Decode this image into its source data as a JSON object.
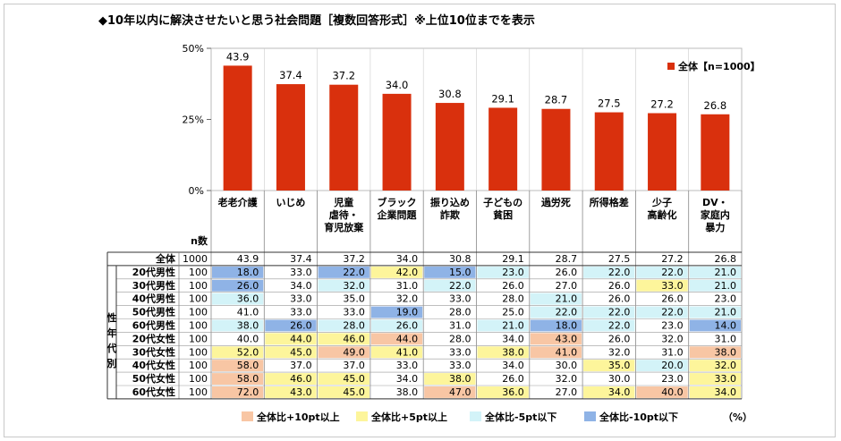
{
  "title": "◆10年以内に解決させたいと思う社会問題［複数回答形式］※上位10位までを表示",
  "unit": "（%）",
  "n_header": "n数",
  "side_label": "性年代別",
  "legend_main": "全体【n=1000】",
  "legend_items": [
    {
      "label": "全体比+10pt以上",
      "color": "#f8c6a4"
    },
    {
      "label": "全体比+5pt以上",
      "color": "#fdf59b"
    },
    {
      "label": "全体比-5pt以下",
      "color": "#d3f3f8"
    },
    {
      "label": "全体比-10pt以下",
      "color": "#8fb3e6"
    }
  ],
  "colors": {
    "bar": "#d9300d",
    "plus10": "#f8c6a4",
    "plus5": "#fdf59b",
    "minus5": "#d3f3f8",
    "minus10": "#8fb3e6"
  },
  "chart_data": {
    "type": "bar",
    "categories": [
      "老老介護",
      "いじめ",
      "児童虐待・育児放棄",
      "ブラック企業問題",
      "振り込め詐欺",
      "子どもの貧困",
      "過労死",
      "所得格差",
      "少子高齢化",
      "DV・家庭内暴力"
    ],
    "category_lines": [
      [
        "老老介護"
      ],
      [
        "いじめ"
      ],
      [
        "児童",
        "虐待・",
        "育児放棄"
      ],
      [
        "ブラック",
        "企業問題"
      ],
      [
        "振り込め",
        "詐欺"
      ],
      [
        "子どもの",
        "貧困"
      ],
      [
        "過労死"
      ],
      [
        "所得格差"
      ],
      [
        "少子",
        "高齢化"
      ],
      [
        "DV・",
        "家庭内",
        "暴力"
      ]
    ],
    "series": [
      {
        "name": "全体【n=1000】",
        "values": [
          43.9,
          37.4,
          37.2,
          34.0,
          30.8,
          29.1,
          28.7,
          27.5,
          27.2,
          26.8
        ]
      }
    ],
    "ylim": [
      0,
      50
    ],
    "yticks": [
      "0%",
      "25%",
      "50%"
    ],
    "data_labels": [
      "43.9",
      "37.4",
      "37.2",
      "34.0",
      "30.8",
      "29.1",
      "28.7",
      "27.5",
      "27.2",
      "26.8"
    ]
  },
  "table": {
    "rows": [
      {
        "label": "全体",
        "n": "1000",
        "values": [
          "43.9",
          "37.4",
          "37.2",
          "34.0",
          "30.8",
          "29.1",
          "28.7",
          "27.5",
          "27.2",
          "26.8"
        ],
        "hl": [
          "",
          "",
          "",
          "",
          "",
          "",
          "",
          "",
          "",
          ""
        ]
      },
      {
        "label": "20代男性",
        "n": "100",
        "values": [
          "18.0",
          "33.0",
          "22.0",
          "42.0",
          "15.0",
          "23.0",
          "26.0",
          "22.0",
          "22.0",
          "21.0"
        ],
        "hl": [
          "m10",
          "",
          "m10",
          "p5",
          "m10",
          "m5",
          "",
          "m5",
          "m5",
          "m5"
        ]
      },
      {
        "label": "30代男性",
        "n": "100",
        "values": [
          "26.0",
          "34.0",
          "32.0",
          "31.0",
          "22.0",
          "26.0",
          "27.0",
          "26.0",
          "33.0",
          "21.0"
        ],
        "hl": [
          "m10",
          "",
          "m5",
          "",
          "m5",
          "",
          "",
          "",
          "p5",
          "m5"
        ]
      },
      {
        "label": "40代男性",
        "n": "100",
        "values": [
          "36.0",
          "33.0",
          "35.0",
          "32.0",
          "33.0",
          "28.0",
          "21.0",
          "26.0",
          "26.0",
          "23.0"
        ],
        "hl": [
          "m5",
          "",
          "",
          "",
          "",
          "",
          "m5",
          "",
          "",
          ""
        ]
      },
      {
        "label": "50代男性",
        "n": "100",
        "values": [
          "41.0",
          "33.0",
          "33.0",
          "19.0",
          "28.0",
          "25.0",
          "22.0",
          "22.0",
          "22.0",
          "21.0"
        ],
        "hl": [
          "",
          "",
          "",
          "m10",
          "",
          "",
          "m5",
          "m5",
          "m5",
          "m5"
        ]
      },
      {
        "label": "60代男性",
        "n": "100",
        "values": [
          "38.0",
          "26.0",
          "28.0",
          "26.0",
          "31.0",
          "21.0",
          "18.0",
          "22.0",
          "23.0",
          "14.0"
        ],
        "hl": [
          "m5",
          "m10",
          "m5",
          "m5",
          "",
          "m5",
          "m10",
          "m5",
          "",
          "m10"
        ]
      },
      {
        "label": "20代女性",
        "n": "100",
        "values": [
          "40.0",
          "44.0",
          "46.0",
          "44.0",
          "28.0",
          "34.0",
          "43.0",
          "26.0",
          "32.0",
          "31.0"
        ],
        "hl": [
          "",
          "p5",
          "p5",
          "p10",
          "",
          "",
          "p10",
          "",
          "",
          ""
        ]
      },
      {
        "label": "30代女性",
        "n": "100",
        "values": [
          "52.0",
          "45.0",
          "49.0",
          "41.0",
          "33.0",
          "38.0",
          "41.0",
          "32.0",
          "31.0",
          "38.0"
        ],
        "hl": [
          "p5",
          "p5",
          "p10",
          "p5",
          "",
          "p5",
          "p10",
          "",
          "",
          "p10"
        ]
      },
      {
        "label": "40代女性",
        "n": "100",
        "values": [
          "58.0",
          "37.0",
          "37.0",
          "33.0",
          "33.0",
          "34.0",
          "30.0",
          "35.0",
          "20.0",
          "32.0"
        ],
        "hl": [
          "p10",
          "",
          "",
          "",
          "",
          "",
          "",
          "p5",
          "m5",
          "p5"
        ]
      },
      {
        "label": "50代女性",
        "n": "100",
        "values": [
          "58.0",
          "46.0",
          "45.0",
          "34.0",
          "38.0",
          "26.0",
          "32.0",
          "30.0",
          "23.0",
          "33.0"
        ],
        "hl": [
          "p10",
          "p5",
          "p5",
          "",
          "p5",
          "",
          "",
          "",
          "",
          "p5"
        ]
      },
      {
        "label": "60代女性",
        "n": "100",
        "values": [
          "72.0",
          "43.0",
          "45.0",
          "38.0",
          "47.0",
          "36.0",
          "27.0",
          "34.0",
          "40.0",
          "34.0"
        ],
        "hl": [
          "p10",
          "p5",
          "p5",
          "",
          "p10",
          "p5",
          "",
          "p5",
          "p10",
          "p5"
        ]
      }
    ]
  }
}
